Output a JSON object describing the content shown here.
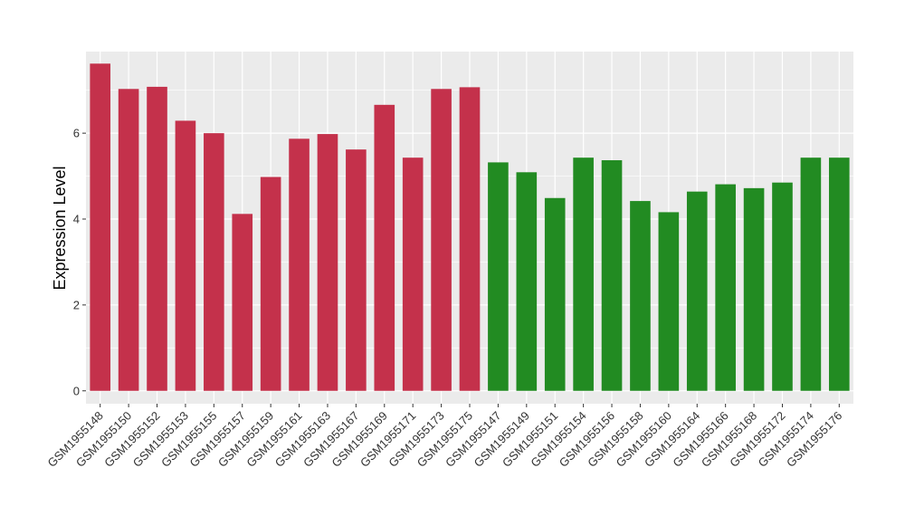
{
  "chart_data": {
    "type": "bar",
    "title": "",
    "xlabel": "",
    "ylabel": "Expression Level",
    "ylim": [
      -0.3,
      7.9
    ],
    "yticks": [
      0,
      2,
      4,
      6
    ],
    "grid": true,
    "categories": [
      "GSM1955148",
      "GSM1955150",
      "GSM1955152",
      "GSM1955153",
      "GSM1955155",
      "GSM1955157",
      "GSM1955159",
      "GSM1955161",
      "GSM1955163",
      "GSM1955167",
      "GSM1955169",
      "GSM1955171",
      "GSM1955173",
      "GSM1955175",
      "GSM1955147",
      "GSM1955149",
      "GSM1955151",
      "GSM1955154",
      "GSM1955156",
      "GSM1955158",
      "GSM1955160",
      "GSM1955164",
      "GSM1955166",
      "GSM1955168",
      "GSM1955172",
      "GSM1955174",
      "GSM1955176"
    ],
    "values": [
      7.62,
      7.03,
      7.08,
      6.29,
      6.0,
      4.12,
      4.98,
      5.87,
      5.98,
      5.62,
      6.66,
      5.43,
      7.03,
      7.07,
      5.32,
      5.09,
      4.49,
      5.43,
      5.37,
      4.42,
      4.16,
      4.64,
      4.81,
      4.72,
      4.85,
      5.43,
      5.43
    ],
    "colors": [
      "#c4314b",
      "#c4314b",
      "#c4314b",
      "#c4314b",
      "#c4314b",
      "#c4314b",
      "#c4314b",
      "#c4314b",
      "#c4314b",
      "#c4314b",
      "#c4314b",
      "#c4314b",
      "#c4314b",
      "#c4314b",
      "#228b22",
      "#228b22",
      "#228b22",
      "#228b22",
      "#228b22",
      "#228b22",
      "#228b22",
      "#228b22",
      "#228b22",
      "#228b22",
      "#228b22",
      "#228b22",
      "#228b22"
    ],
    "panel_background": "#ebebeb",
    "grid_color": "#ffffff"
  }
}
